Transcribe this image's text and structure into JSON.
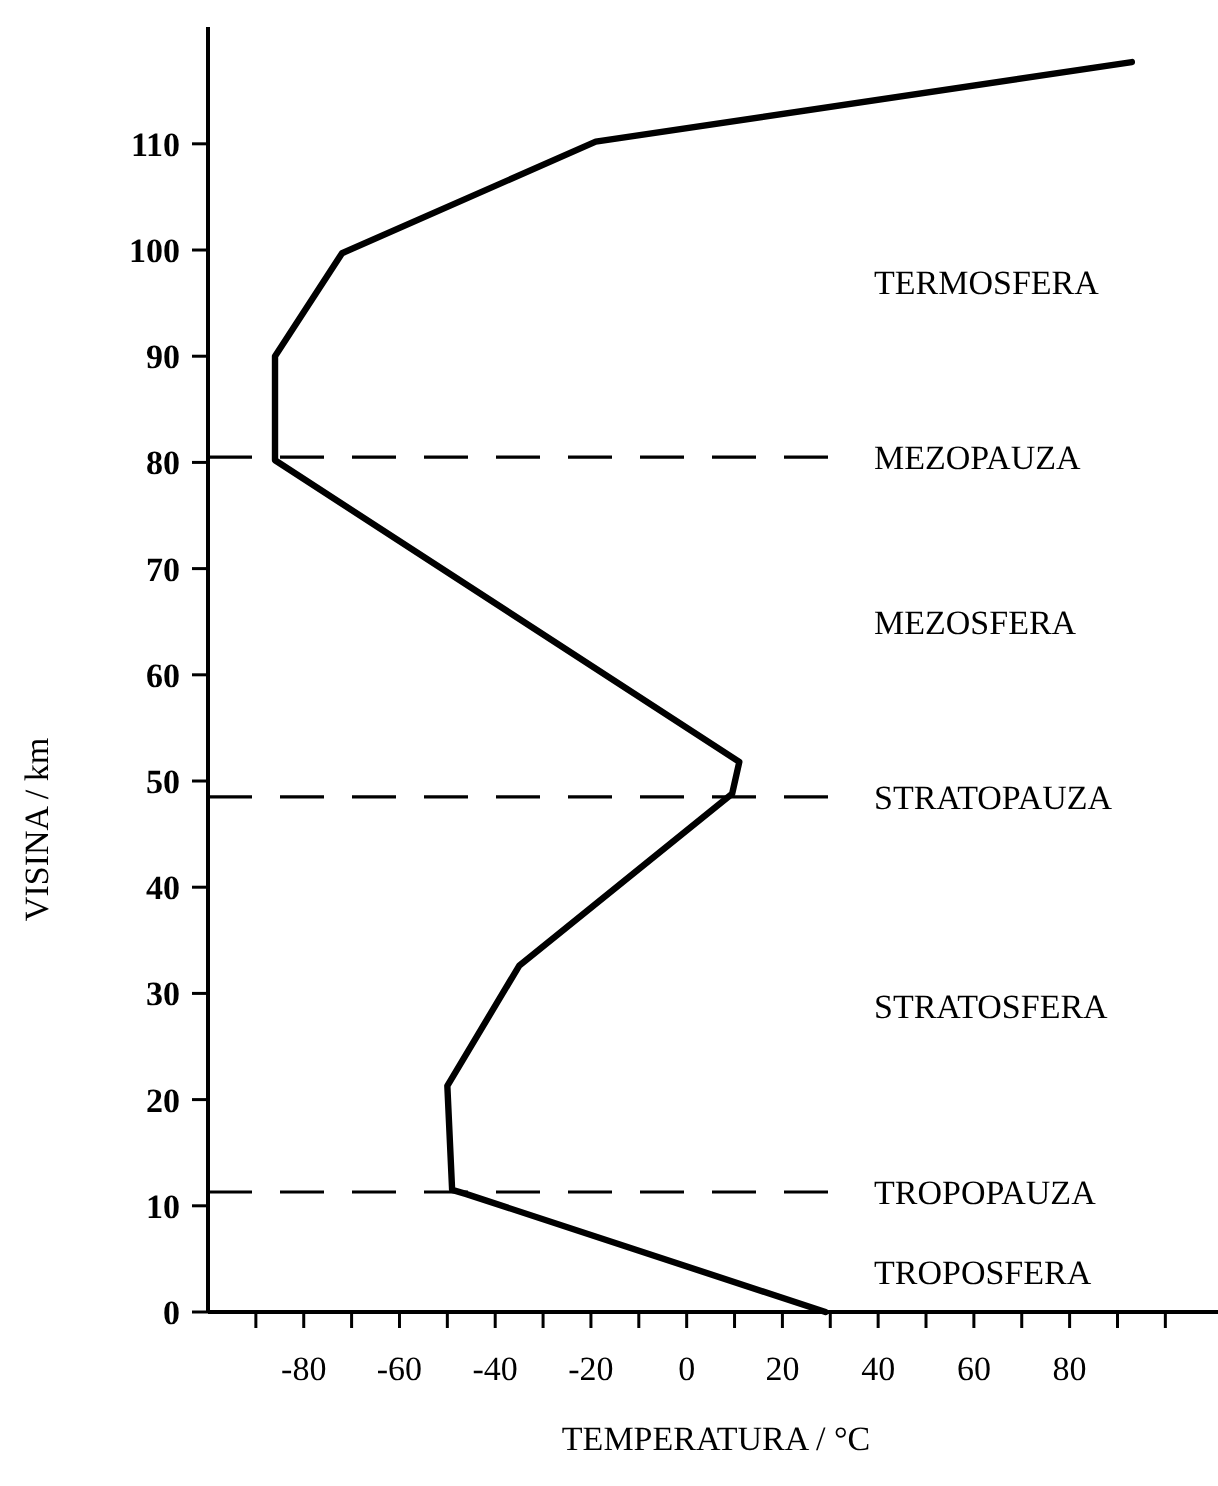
{
  "chart_data": {
    "type": "line",
    "xlabel": "TEMPERATURA / °C",
    "ylabel": "VISINA / km",
    "series": [
      {
        "color": "#000000",
        "x": [
          29,
          -46,
          -49,
          -50,
          -35,
          9.5,
          11,
          -86,
          -86,
          -72,
          -19,
          93
        ],
        "values": [
          0,
          11.1,
          11.5,
          21.3,
          32.6,
          48.8,
          51.8,
          80.2,
          90,
          99.7,
          110.2,
          117.7
        ]
      }
    ],
    "xlim": [
      -100,
      111
    ],
    "ylim": [
      0,
      121
    ],
    "xticks": [
      {
        "value": -90,
        "label": null
      },
      -80,
      {
        "value": -70,
        "label": null
      },
      -60,
      {
        "value": -50,
        "label": null
      },
      -40,
      {
        "value": -30,
        "label": null
      },
      -20,
      {
        "value": -10,
        "label": null
      },
      0,
      {
        "value": 10,
        "label": null
      },
      20,
      {
        "value": 30,
        "label": null
      },
      40,
      {
        "value": 50,
        "label": null
      },
      60,
      {
        "value": 70,
        "label": null
      },
      80,
      {
        "value": 90,
        "label": null
      },
      {
        "value": 100,
        "label": null
      }
    ],
    "yticks": [
      0,
      10,
      20,
      30,
      40,
      50,
      60,
      70,
      80,
      90,
      100,
      110
    ],
    "ref_lines": [
      {
        "axis": "y",
        "value": 80.5,
        "label": "MEZOPAUZA",
        "line_style": "dashed"
      },
      {
        "axis": "y",
        "value": 48.5,
        "label": "STRATOPAUZA",
        "line_style": "dashed"
      },
      {
        "axis": "y",
        "value": 11.3,
        "label": "TROPOPAUZA",
        "line_style": "dashed"
      }
    ],
    "annotations": [
      "TERMOSFERA",
      "MEZOSFERA",
      "STRATOSFERA",
      "TROPOSFERA"
    ],
    "grid": false,
    "marker": "none",
    "line_style": "solid"
  }
}
